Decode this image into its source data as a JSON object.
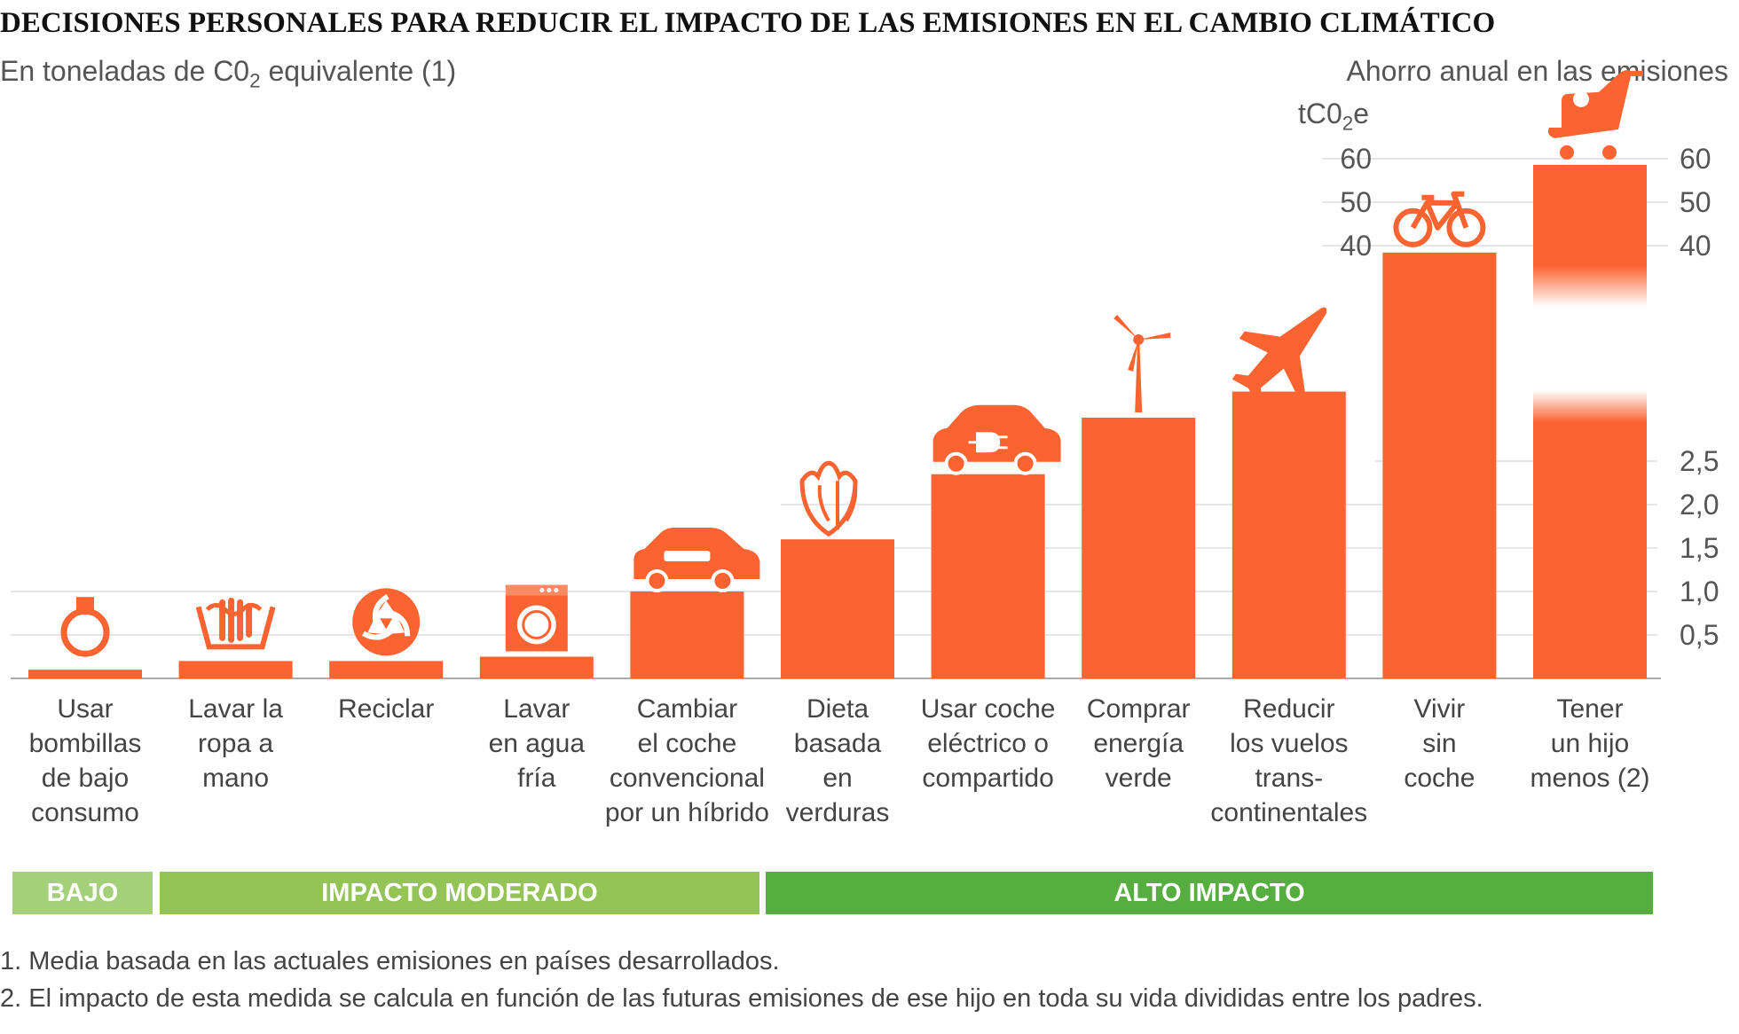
{
  "title": "DECISIONES PERSONALES PARA REDUCIR EL IMPACTO DE LAS EMISIONES EN EL CAMBIO CLIMÁTICO",
  "subtitle": {
    "pre": "En toneladas de C0",
    "sub": "2",
    "post": " equivalente (1)"
  },
  "right_title": "Ahorro anual en las emisiones",
  "unit": {
    "pre": "tC0",
    "sub": "2",
    "post": "e"
  },
  "colors": {
    "bar": "#fb6431",
    "grid": "#dddddd",
    "axis": "#aaaaaa",
    "low": "#a4d07a",
    "moderate": "#94c456",
    "high": "#56ae40"
  },
  "chart_data": {
    "type": "bar",
    "categories": [
      "Usar bombillas de bajo consumo",
      "Lavar la ropa a mano",
      "Reciclar",
      "Lavar en agua fría",
      "Cambiar el coche convencional por un híbrido",
      "Dieta basada en verduras",
      "Usar coche eléctrico o compartido",
      "Comprar energía verde",
      "Reducir los vuelos trans-continentales",
      "Vivir sin coche",
      "Tener un hijo menos (2)"
    ],
    "category_lines": [
      [
        "Usar",
        "bombillas",
        "de bajo",
        "consumo"
      ],
      [
        "Lavar la",
        "ropa a",
        "mano"
      ],
      [
        "Reciclar"
      ],
      [
        "Lavar",
        "en agua",
        "fría"
      ],
      [
        "Cambiar",
        "el coche",
        "convencional",
        "por un híbrido"
      ],
      [
        "Dieta",
        "basada",
        "en",
        "verduras"
      ],
      [
        "Usar coche",
        "eléctrico o",
        "compartido"
      ],
      [
        "Comprar",
        "energía",
        "verde"
      ],
      [
        "Reducir",
        "los vuelos",
        "trans-",
        "continentales"
      ],
      [
        "Vivir",
        "sin",
        "coche"
      ],
      [
        "Tener",
        "un hijo",
        "menos (2)"
      ]
    ],
    "values": [
      0.1,
      0.2,
      0.2,
      0.25,
      1.0,
      1.6,
      2.35,
      3.0,
      3.3,
      4.9,
      58.6
    ],
    "icons": [
      "lightbulb-icon",
      "hand-wash-icon",
      "recycle-icon",
      "washing-machine-icon",
      "car-icon",
      "vegetable-icon",
      "electric-car-icon",
      "wind-turbine-icon",
      "airplane-icon",
      "bicycle-icon",
      "stroller-icon"
    ],
    "xlabel": "",
    "ylabel": "",
    "lower_ylim": [
      0,
      3
    ],
    "lower_ticks": [
      "0,5",
      "1,0",
      "1,5",
      "2,0",
      "2,5"
    ],
    "upper_ylim": [
      35,
      62
    ],
    "upper_ticks": [
      "40",
      "50",
      "60"
    ],
    "axis_break": true,
    "grid": true
  },
  "impact_bands": [
    {
      "label": "BAJO",
      "color": "#a4d07a"
    },
    {
      "label": "IMPACTO MODERADO",
      "color": "#94c456"
    },
    {
      "label": "ALTO IMPACTO",
      "color": "#56ae40"
    }
  ],
  "notes": [
    "1. Media basada en las actuales emisiones en países desarrollados.",
    "2. El impacto de esta medida se calcula en función de las futuras emisiones de ese hijo en toda su vida divididas entre los padres."
  ]
}
